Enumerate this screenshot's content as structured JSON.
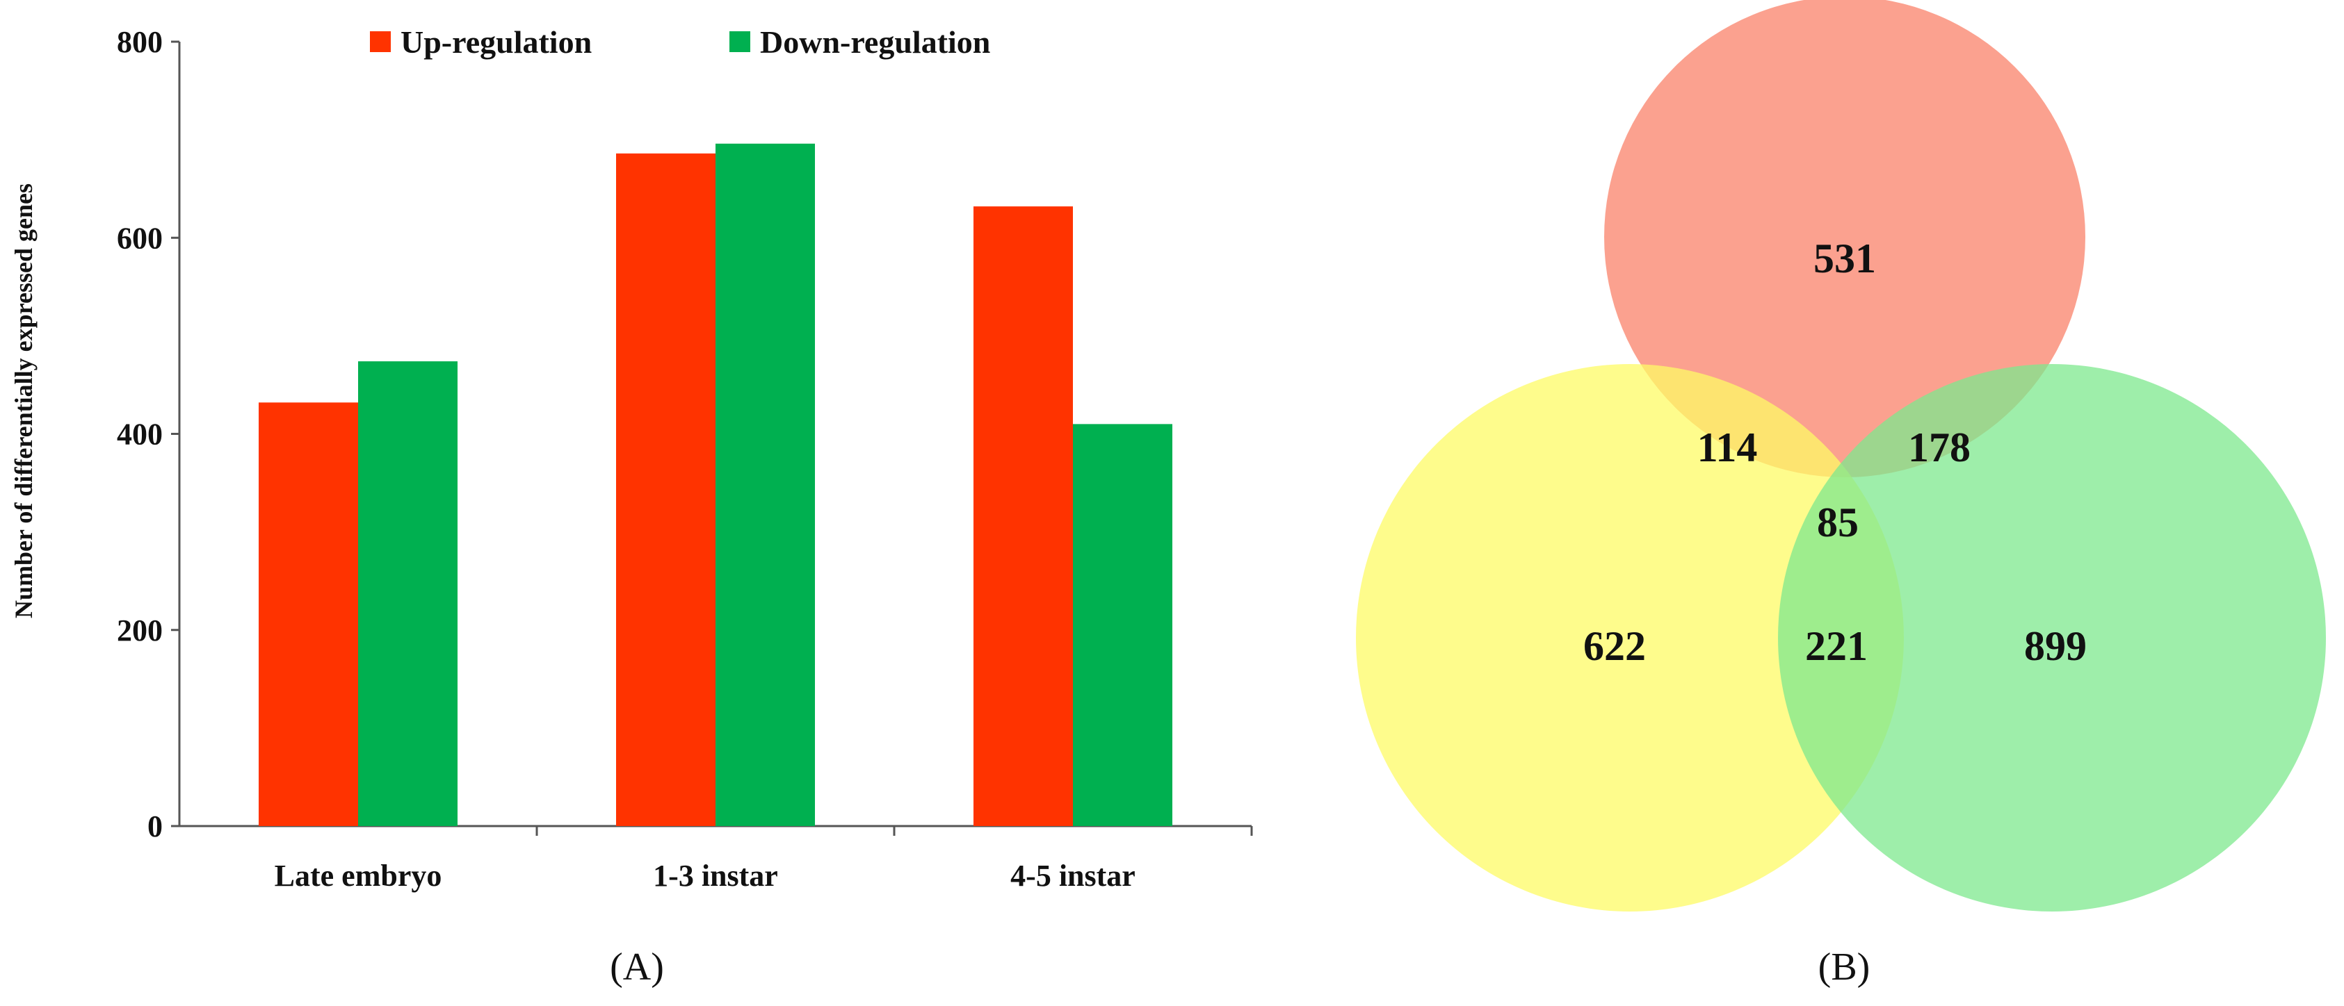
{
  "chart_data": [
    {
      "type": "bar",
      "panel": "A",
      "ylabel": "Number of differentially expressed genes",
      "xlabel": "",
      "ylim": [
        0,
        800
      ],
      "yticks": [
        0,
        200,
        400,
        600,
        800
      ],
      "grid": false,
      "legend_position": "top",
      "categories": [
        "Late embryo",
        "1-3 instar",
        "4-5 instar"
      ],
      "series": [
        {
          "name": "Up-regulation",
          "color": "#ff3300",
          "values": [
            432,
            686,
            632
          ]
        },
        {
          "name": "Down-regulation",
          "color": "#00b050",
          "values": [
            474,
            696,
            410
          ]
        }
      ]
    },
    {
      "type": "venn",
      "panel": "B",
      "sets": [
        {
          "color": "#f9826a"
        },
        {
          "color": "#fdfb66"
        },
        {
          "color": "#7ee88e"
        }
      ],
      "regions": {
        "top_only": 531,
        "left_only": 622,
        "right_only": 899,
        "top_left": 114,
        "top_right": 178,
        "left_right": 221,
        "all_three": 85
      }
    }
  ],
  "panel_labels": {
    "a": "(A)",
    "b": "(B)"
  }
}
